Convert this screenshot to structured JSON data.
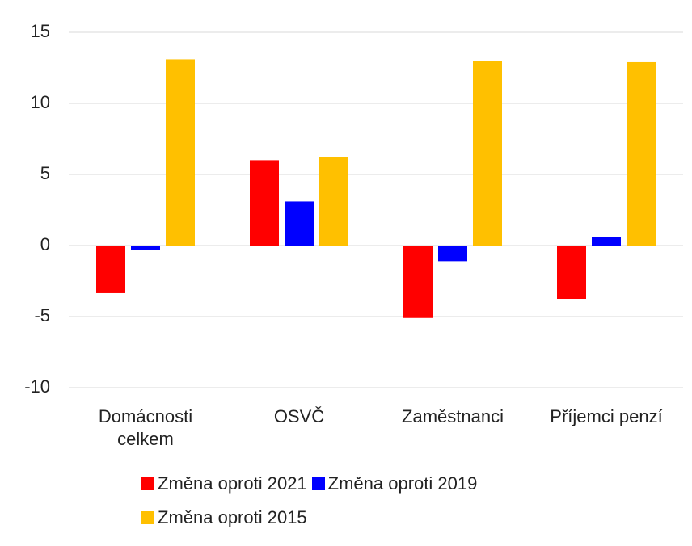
{
  "chart_data": {
    "type": "bar",
    "categories": [
      "Domácnosti celkem",
      "OSVČ",
      "Zaměstnanci",
      "Příjemci penzí"
    ],
    "series": [
      {
        "name": "Změna oproti 2021",
        "color": "#ff0000",
        "values": [
          -3.35,
          6.0,
          -5.1,
          -3.75
        ]
      },
      {
        "name": "Změna oproti 2019",
        "color": "#0000ff",
        "values": [
          -0.3,
          3.1,
          -1.1,
          0.6
        ]
      },
      {
        "name": "Změna oproti 2015",
        "color": "#ffc000",
        "values": [
          13.1,
          6.2,
          13.0,
          12.9
        ]
      }
    ],
    "ylim": [
      -10,
      15
    ],
    "yticks": [
      -10,
      -5,
      0,
      5,
      10,
      15
    ],
    "grid": true,
    "legend": "bottom"
  }
}
